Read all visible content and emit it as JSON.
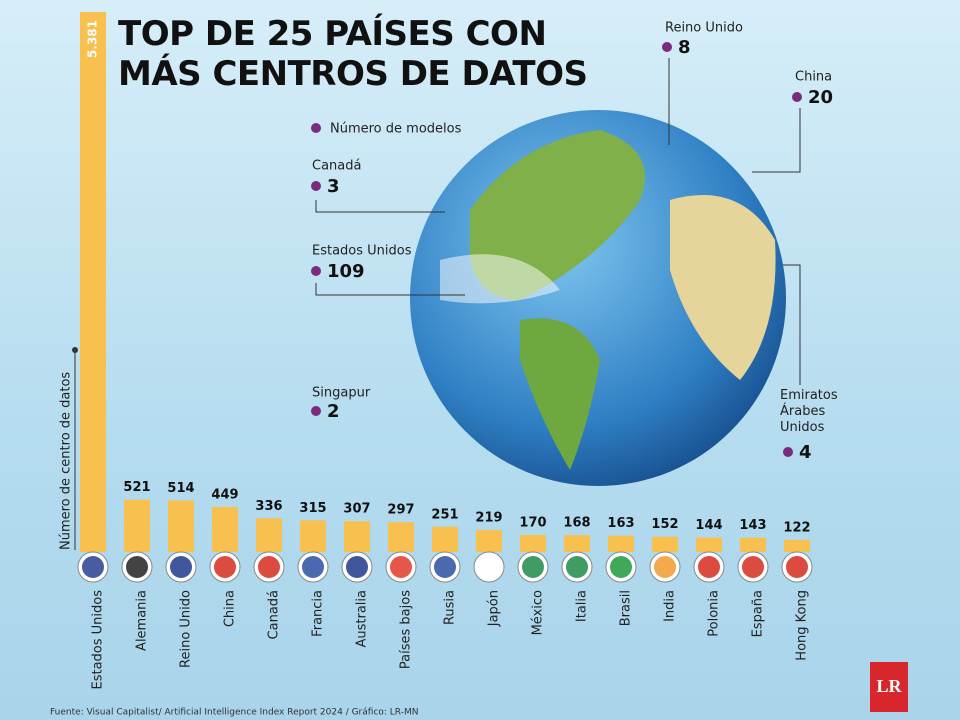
{
  "chart_data": {
    "type": "bar",
    "title": "TOP DE 25 PAÍSES CON MÁS CENTROS DE DATOS",
    "y_label": "Número de centro de datos",
    "categories": [
      "Estados Unidos",
      "Alemania",
      "Reino Unido",
      "China",
      "Canadá",
      "Francia",
      "Australia",
      "Países bajos",
      "Rusia",
      "Japón",
      "México",
      "Italia",
      "Brasil",
      "India",
      "Polonia",
      "España",
      "Hong Kong"
    ],
    "values": [
      5381,
      521,
      514,
      449,
      336,
      315,
      307,
      297,
      251,
      219,
      170,
      168,
      163,
      152,
      144,
      143,
      122
    ],
    "value_labels": [
      "5.381",
      "521",
      "514",
      "449",
      "336",
      "315",
      "307",
      "297",
      "251",
      "219",
      "170",
      "168",
      "163",
      "152",
      "144",
      "143",
      "122"
    ],
    "color": "#f7c04f",
    "annotations": {
      "legend": "Número de modelos",
      "color": "#7a2a7f",
      "items": [
        {
          "country": "Reino Unido",
          "value": 8
        },
        {
          "country": "China",
          "value": 20
        },
        {
          "country": "Canadá",
          "value": 3
        },
        {
          "country": "Estados Unidos",
          "value": 109
        },
        {
          "country": "Singapur",
          "value": 2
        },
        {
          "country": "Emiratos Árabes Unidos",
          "value": 4
        }
      ]
    },
    "source": "Fuente: Visual Capitalist/ Artificial Intelligence Index Report 2024 / Gráfico: LR-MN",
    "logo": "LR"
  }
}
